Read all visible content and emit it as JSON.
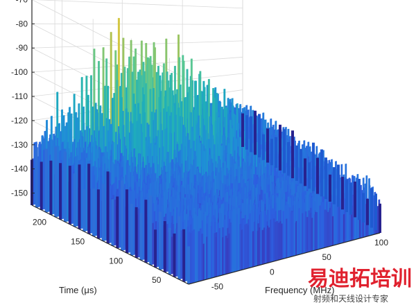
{
  "chart_data": {
    "type": "surface",
    "zlabel": "",
    "xlabel": "Frequency (MHz)",
    "ylabel": "Time (μs)",
    "x_ticks": [
      "-50",
      "0",
      "50",
      "100"
    ],
    "y_ticks": [
      "50",
      "100",
      "150",
      "200"
    ],
    "z_ticks": [
      "-70",
      "-80",
      "-90",
      "-100",
      "-110",
      "-120",
      "-130",
      "-140",
      "-150"
    ],
    "xlim": [
      -75,
      100
    ],
    "ylim": [
      25,
      230
    ],
    "zlim": [
      -155,
      -65
    ],
    "grid": true,
    "colormap": [
      "#3e26a8",
      "#2d5fe0",
      "#1f8fd6",
      "#1fb0b8",
      "#5ec98e",
      "#c8c040",
      "#f7d53a"
    ],
    "noise_floor_dB": -135,
    "peak_dB": -67
  },
  "watermark": {
    "title": "易迪拓培训",
    "subtitle": "射频和天线设计专家"
  }
}
